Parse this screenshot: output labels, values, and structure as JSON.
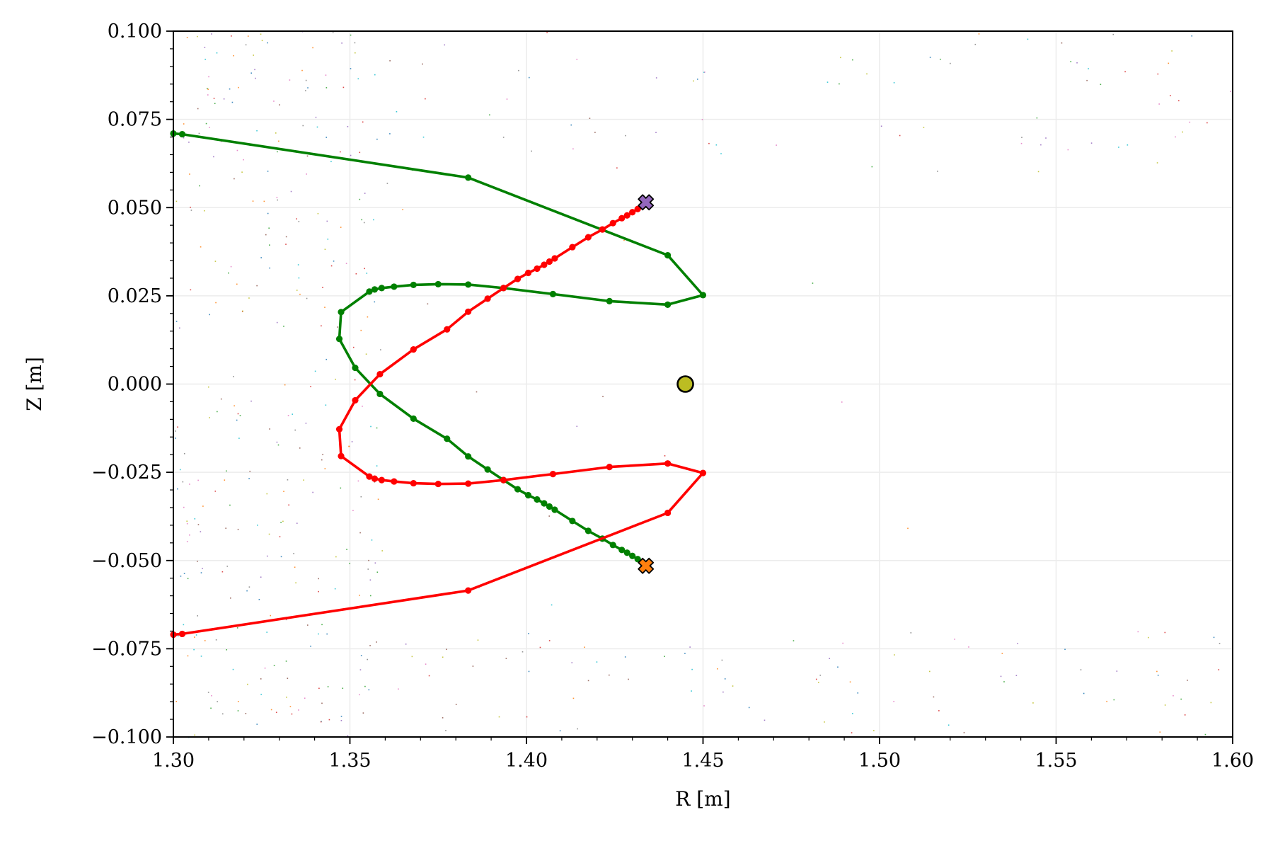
{
  "chart_data": {
    "type": "line",
    "title": "",
    "xlabel": "R [m]",
    "ylabel": "Z [m]",
    "xlim": [
      1.3,
      1.6
    ],
    "ylim": [
      -0.1,
      0.1
    ],
    "grid": true,
    "legend": "none",
    "x_ticks": [
      1.3,
      1.35,
      1.4,
      1.45,
      1.5,
      1.55,
      1.6
    ],
    "x_tick_labels": [
      "1.30",
      "1.35",
      "1.40",
      "1.45",
      "1.50",
      "1.55",
      "1.60"
    ],
    "y_ticks": [
      0.1,
      0.075,
      0.05,
      0.025,
      0.0,
      -0.025,
      -0.05,
      -0.075,
      -0.1
    ],
    "y_tick_labels": [
      "0.100",
      "0.075",
      "0.050",
      "0.025",
      "0.000",
      "−0.025",
      "−0.050",
      "−0.075",
      "−0.100"
    ],
    "series": [
      {
        "color": "#008000",
        "points": [
          [
            1.3,
            0.071
          ],
          [
            1.3025,
            0.0708
          ],
          [
            1.3835,
            0.0585
          ],
          [
            1.44,
            0.0365
          ],
          [
            1.45,
            0.0252
          ],
          [
            1.44,
            0.0225
          ],
          [
            1.4235,
            0.0235
          ],
          [
            1.4075,
            0.0255
          ],
          [
            1.3935,
            0.0272
          ],
          [
            1.3835,
            0.0282
          ],
          [
            1.375,
            0.0283
          ],
          [
            1.368,
            0.0281
          ],
          [
            1.3625,
            0.0276
          ],
          [
            1.359,
            0.0272
          ],
          [
            1.357,
            0.0268
          ],
          [
            1.3555,
            0.0262
          ],
          [
            1.3475,
            0.0204
          ],
          [
            1.347,
            0.0128
          ],
          [
            1.3515,
            0.0046
          ],
          [
            1.3585,
            -0.0028
          ],
          [
            1.368,
            -0.0098
          ],
          [
            1.3775,
            -0.0155
          ],
          [
            1.3835,
            -0.0205
          ],
          [
            1.389,
            -0.0242
          ],
          [
            1.3935,
            -0.0272
          ],
          [
            1.3975,
            -0.0298
          ],
          [
            1.4005,
            -0.0315
          ],
          [
            1.403,
            -0.0327
          ],
          [
            1.405,
            -0.0338
          ],
          [
            1.4065,
            -0.0347
          ],
          [
            1.408,
            -0.0356
          ],
          [
            1.413,
            -0.0388
          ],
          [
            1.4175,
            -0.0416
          ],
          [
            1.4215,
            -0.0438
          ],
          [
            1.4245,
            -0.0456
          ],
          [
            1.427,
            -0.047
          ],
          [
            1.4285,
            -0.0478
          ],
          [
            1.43,
            -0.0487
          ],
          [
            1.4315,
            -0.0496
          ],
          [
            1.433,
            -0.0505
          ],
          [
            1.4338,
            -0.0512
          ]
        ]
      },
      {
        "color": "#ff0000",
        "points": [
          [
            1.3,
            -0.071
          ],
          [
            1.3025,
            -0.0708
          ],
          [
            1.3835,
            -0.0585
          ],
          [
            1.44,
            -0.0365
          ],
          [
            1.45,
            -0.0252
          ],
          [
            1.44,
            -0.0225
          ],
          [
            1.4235,
            -0.0235
          ],
          [
            1.4075,
            -0.0255
          ],
          [
            1.3935,
            -0.0272
          ],
          [
            1.3835,
            -0.0282
          ],
          [
            1.375,
            -0.0283
          ],
          [
            1.368,
            -0.0281
          ],
          [
            1.3625,
            -0.0276
          ],
          [
            1.359,
            -0.0272
          ],
          [
            1.357,
            -0.0268
          ],
          [
            1.3555,
            -0.0262
          ],
          [
            1.3475,
            -0.0204
          ],
          [
            1.347,
            -0.0128
          ],
          [
            1.3515,
            -0.0046
          ],
          [
            1.3585,
            0.0028
          ],
          [
            1.368,
            0.0098
          ],
          [
            1.3775,
            0.0155
          ],
          [
            1.3835,
            0.0205
          ],
          [
            1.389,
            0.0242
          ],
          [
            1.3935,
            0.0272
          ],
          [
            1.3975,
            0.0298
          ],
          [
            1.4005,
            0.0315
          ],
          [
            1.403,
            0.0327
          ],
          [
            1.405,
            0.0338
          ],
          [
            1.4065,
            0.0347
          ],
          [
            1.408,
            0.0356
          ],
          [
            1.413,
            0.0388
          ],
          [
            1.4175,
            0.0416
          ],
          [
            1.4215,
            0.0438
          ],
          [
            1.4245,
            0.0456
          ],
          [
            1.427,
            0.047
          ],
          [
            1.4285,
            0.0478
          ],
          [
            1.43,
            0.0487
          ],
          [
            1.4315,
            0.0496
          ],
          [
            1.433,
            0.0505
          ],
          [
            1.4338,
            0.0512
          ]
        ]
      }
    ],
    "markers": [
      {
        "shape": "cross",
        "x": 1.4338,
        "y": 0.0515,
        "color": "#9467bd"
      },
      {
        "shape": "cross",
        "x": 1.4338,
        "y": -0.0515,
        "color": "#ff7f0e"
      },
      {
        "shape": "circle",
        "x": 1.445,
        "y": 0.0,
        "color": "#bcbd22"
      }
    ],
    "scatter_colors": [
      "#1f77b4",
      "#ff7f0e",
      "#2ca02c",
      "#d62728",
      "#9467bd",
      "#8c564b",
      "#e377c2",
      "#7f7f7f",
      "#bcbd22",
      "#17becf"
    ]
  }
}
